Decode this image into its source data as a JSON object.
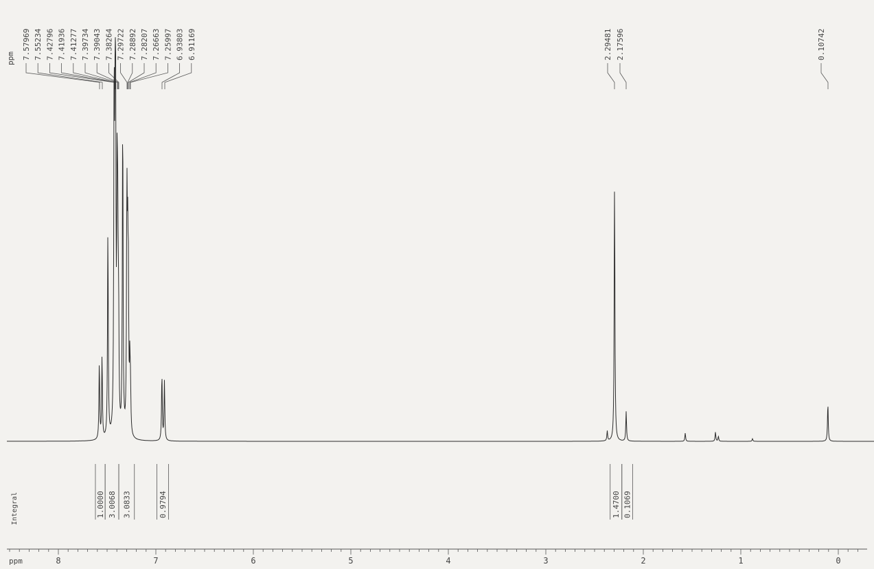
{
  "chart_data": {
    "type": "line",
    "title": "",
    "x_unit_label": "ppm",
    "peak_unit_label": "ppm",
    "integral_axis_label": "Integral",
    "xlim": [
      8.5,
      -0.35
    ],
    "x_direction": "decreasing",
    "x_ticks": [
      "8",
      "7",
      "6",
      "5",
      "4",
      "3",
      "2",
      "1",
      "0"
    ],
    "peak_labels": [
      "7.57969",
      "7.55234",
      "7.42796",
      "7.41936",
      "7.41277",
      "7.39734",
      "7.39043",
      "7.38264",
      "7.29722",
      "7.28892",
      "7.28207",
      "7.26663",
      "7.25997",
      "6.93803",
      "6.91169",
      "2.29481",
      "2.17596",
      "0.10742"
    ],
    "integrals": [
      {
        "from": 7.62,
        "to": 7.52,
        "value": "1.0000"
      },
      {
        "from": 7.52,
        "to": 7.38,
        "value": "3.0068"
      },
      {
        "from": 7.38,
        "to": 7.22,
        "value": "3.0833"
      },
      {
        "from": 6.99,
        "to": 6.87,
        "value": "0.9794"
      },
      {
        "from": 2.34,
        "to": 2.22,
        "value": "1.4700"
      },
      {
        "from": 2.22,
        "to": 2.11,
        "value": "0.1069"
      }
    ],
    "series": [
      {
        "values": [
          {
            "x": 7.58,
            "y": 0.23
          },
          {
            "x": 7.552,
            "y": 0.25
          },
          {
            "x": 7.492,
            "y": 0.63
          },
          {
            "x": 7.428,
            "y": 0.99
          },
          {
            "x": 7.419,
            "y": 0.6
          },
          {
            "x": 7.413,
            "y": 0.88
          },
          {
            "x": 7.397,
            "y": 0.7
          },
          {
            "x": 7.39,
            "y": 0.45
          },
          {
            "x": 7.382,
            "y": 0.3
          },
          {
            "x": 7.34,
            "y": 0.97
          },
          {
            "x": 7.297,
            "y": 0.68
          },
          {
            "x": 7.289,
            "y": 0.44
          },
          {
            "x": 7.282,
            "y": 0.4
          },
          {
            "x": 7.267,
            "y": 0.2
          },
          {
            "x": 7.26,
            "y": 0.12
          },
          {
            "x": 6.938,
            "y": 0.2
          },
          {
            "x": 6.912,
            "y": 0.18
          },
          {
            "x": 2.37,
            "y": 0.03
          },
          {
            "x": 2.295,
            "y": 0.78
          },
          {
            "x": 2.176,
            "y": 0.09
          },
          {
            "x": 1.57,
            "y": 0.025
          },
          {
            "x": 1.26,
            "y": 0.028
          },
          {
            "x": 1.23,
            "y": 0.015
          },
          {
            "x": 0.88,
            "y": 0.008
          },
          {
            "x": 0.107,
            "y": 0.115
          }
        ]
      }
    ],
    "grid": false,
    "legend": "none"
  }
}
